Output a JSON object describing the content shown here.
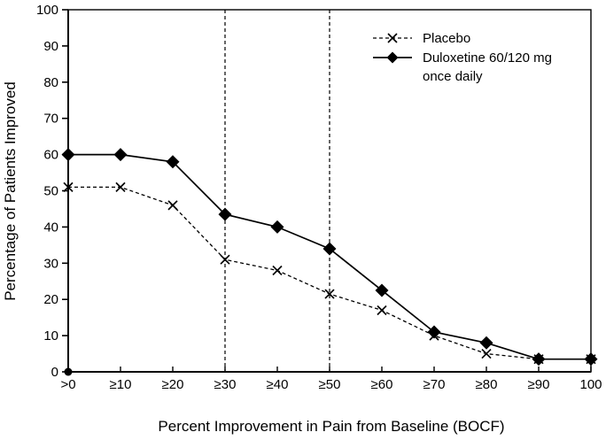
{
  "figure": {
    "background_color": "#ffffff",
    "foreground_color": "#000000"
  },
  "chart_data": {
    "type": "line",
    "title": "",
    "xlabel": "Percent Improvement in Pain from Baseline (BOCF)",
    "ylabel": "Percentage of Patients Improved",
    "categories": [
      ">0",
      "≥10",
      "≥20",
      "≥30",
      "≥40",
      "≥50",
      "≥60",
      "≥70",
      "≥80",
      "≥90",
      "100"
    ],
    "y_ticks": [
      0,
      10,
      20,
      30,
      40,
      50,
      60,
      70,
      80,
      90,
      100
    ],
    "ylim": [
      0,
      100
    ],
    "grid": "off",
    "legend_position": "top-right-inside",
    "series": [
      {
        "name": "Placebo",
        "marker": "x",
        "line_style": "dashed",
        "color": "#000000",
        "values": [
          51,
          51,
          46,
          31,
          28,
          21.5,
          17,
          10,
          5,
          3.5,
          3.5
        ]
      },
      {
        "name": "Duloxetine 60/120 mg once daily",
        "marker": "diamond",
        "line_style": "solid",
        "color": "#000000",
        "values": [
          60,
          60,
          58,
          43.5,
          40,
          34,
          22.5,
          11,
          8,
          3.5,
          3.5
        ]
      }
    ],
    "reference_lines": {
      "vertical_dashed_at": [
        "≥30",
        "≥50"
      ]
    },
    "origin_marker": {
      "x": ">0",
      "y": 0,
      "shape": "filled-circle"
    }
  }
}
